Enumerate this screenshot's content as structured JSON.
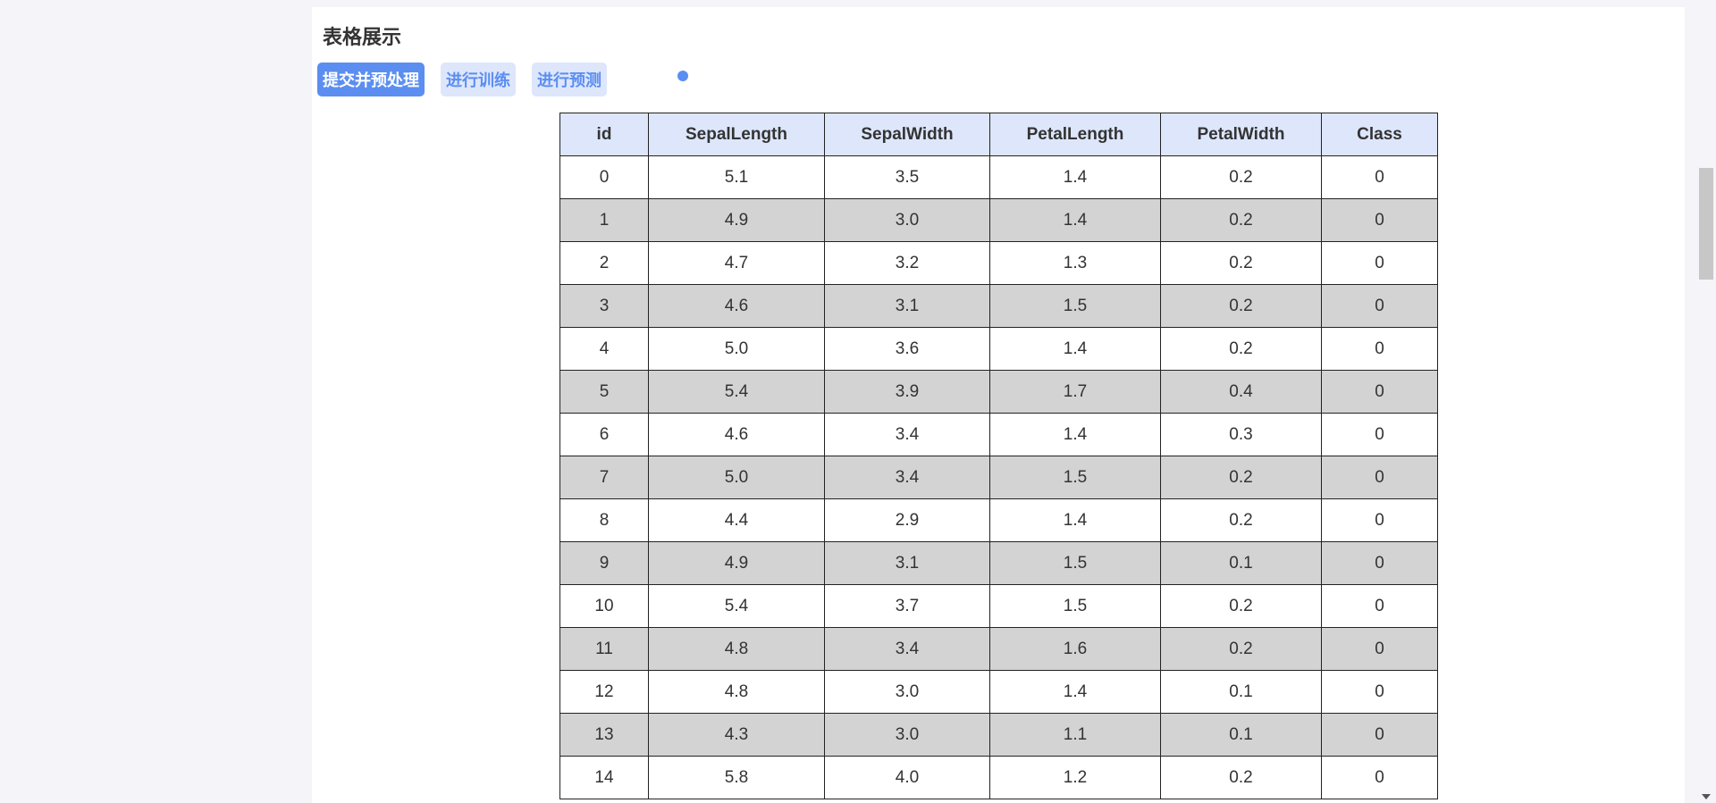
{
  "section": {
    "title": "表格展示"
  },
  "toolbar": {
    "submit_label": "提交并预处理",
    "train_label": "进行训练",
    "predict_label": "进行预测"
  },
  "colors": {
    "accent": "#5b8ef0",
    "header_bg": "#dde6fb",
    "stripe": "#d3d3d3"
  },
  "table": {
    "columns": [
      "id",
      "SepalLength",
      "SepalWidth",
      "PetalLength",
      "PetalWidth",
      "Class"
    ],
    "rows": [
      [
        "0",
        "5.1",
        "3.5",
        "1.4",
        "0.2",
        "0"
      ],
      [
        "1",
        "4.9",
        "3.0",
        "1.4",
        "0.2",
        "0"
      ],
      [
        "2",
        "4.7",
        "3.2",
        "1.3",
        "0.2",
        "0"
      ],
      [
        "3",
        "4.6",
        "3.1",
        "1.5",
        "0.2",
        "0"
      ],
      [
        "4",
        "5.0",
        "3.6",
        "1.4",
        "0.2",
        "0"
      ],
      [
        "5",
        "5.4",
        "3.9",
        "1.7",
        "0.4",
        "0"
      ],
      [
        "6",
        "4.6",
        "3.4",
        "1.4",
        "0.3",
        "0"
      ],
      [
        "7",
        "5.0",
        "3.4",
        "1.5",
        "0.2",
        "0"
      ],
      [
        "8",
        "4.4",
        "2.9",
        "1.4",
        "0.2",
        "0"
      ],
      [
        "9",
        "4.9",
        "3.1",
        "1.5",
        "0.1",
        "0"
      ],
      [
        "10",
        "5.4",
        "3.7",
        "1.5",
        "0.2",
        "0"
      ],
      [
        "11",
        "4.8",
        "3.4",
        "1.6",
        "0.2",
        "0"
      ],
      [
        "12",
        "4.8",
        "3.0",
        "1.4",
        "0.1",
        "0"
      ],
      [
        "13",
        "4.3",
        "3.0",
        "1.1",
        "0.1",
        "0"
      ],
      [
        "14",
        "5.8",
        "4.0",
        "1.2",
        "0.2",
        "0"
      ]
    ]
  }
}
